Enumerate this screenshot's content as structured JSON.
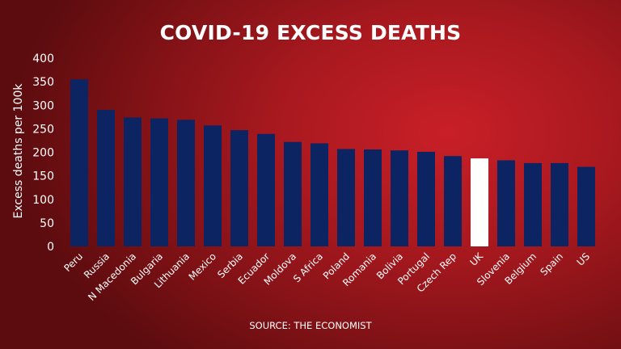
{
  "chart_data": {
    "type": "bar",
    "title": "COVID-19 EXCESS DEATHS",
    "xlabel": "",
    "ylabel": "Excess deaths per 100k",
    "ylim": [
      0,
      400
    ],
    "yticks": [
      0,
      50,
      100,
      150,
      200,
      250,
      300,
      350,
      400
    ],
    "categories": [
      "Peru",
      "Russia",
      "N Macedonia",
      "Bulgaria",
      "Lithuania",
      "Mexico",
      "Serbia",
      "Ecuador",
      "Moldova",
      "S Africa",
      "Poland",
      "Romania",
      "Bolivia",
      "Portugal",
      "Czech Rep",
      "UK",
      "Slovenia",
      "Belgium",
      "Spain",
      "US"
    ],
    "values": [
      355,
      290,
      274,
      272,
      269,
      257,
      247,
      239,
      222,
      219,
      207,
      206,
      204,
      201,
      192,
      187,
      183,
      177,
      177,
      169
    ],
    "highlight": "UK",
    "grid": false,
    "legend": "none",
    "source": "SOURCE: THE ECONOMIST",
    "colors": {
      "bar": "#0d2463",
      "highlight_bar": "#ffffff",
      "text": "#ffffff",
      "background": "#b51b22"
    }
  }
}
